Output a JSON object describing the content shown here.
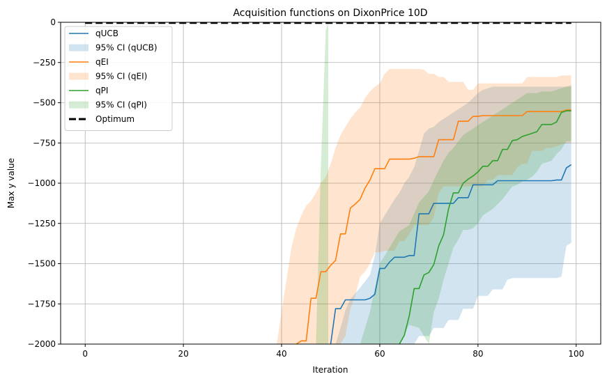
{
  "chart_data": {
    "type": "line",
    "title": "Acquisition functions on DixonPrice 10D",
    "xlabel": "Iteration",
    "ylabel": "Max y value",
    "xlim": [
      -5,
      105
    ],
    "ylim": [
      -2000,
      0
    ],
    "xticks": [
      0,
      20,
      40,
      60,
      80,
      100
    ],
    "yticks": [
      -2000,
      -1750,
      -1500,
      -1250,
      -1000,
      -750,
      -500,
      -250,
      0
    ],
    "xtick_labels": [
      "0",
      "20",
      "40",
      "60",
      "80",
      "100"
    ],
    "ytick_labels": [
      "−2000",
      "−1750",
      "−1500",
      "−1250",
      "−1000",
      "−750",
      "−500",
      "−250",
      "0"
    ],
    "grid": true,
    "legend_position": "upper-left",
    "legend": [
      {
        "label": "qUCB",
        "kind": "line",
        "color": "#1f77b4"
      },
      {
        "label": "95% CI (qUCB)",
        "kind": "band",
        "color": "#1f77b4"
      },
      {
        "label": "qEI",
        "kind": "line",
        "color": "#ff7f0e"
      },
      {
        "label": "95% CI (qEI)",
        "kind": "band",
        "color": "#ff7f0e"
      },
      {
        "label": "qPI",
        "kind": "line",
        "color": "#2ca02c"
      },
      {
        "label": "95% CI (qPI)",
        "kind": "band",
        "color": "#2ca02c"
      },
      {
        "label": "Optimum",
        "kind": "dashed",
        "color": "#000000"
      }
    ],
    "optimum": 0,
    "series": [
      {
        "name": "qUCB",
        "color": "#1f77b4",
        "x": [
          50,
          51,
          52,
          53,
          57,
          58,
          59,
          60,
          61,
          62,
          63,
          64,
          65,
          66,
          67,
          68,
          69,
          70,
          71,
          72,
          73,
          74,
          75,
          76,
          77,
          78,
          79,
          80,
          81,
          82,
          83,
          84,
          85,
          86,
          87,
          88,
          89,
          90,
          91,
          92,
          93,
          94,
          95,
          96,
          97,
          98,
          99
        ],
        "y": [
          -2000,
          -1780,
          -1780,
          -1725,
          -1725,
          -1715,
          -1690,
          -1530,
          -1530,
          -1490,
          -1460,
          -1460,
          -1460,
          -1450,
          -1450,
          -1190,
          -1190,
          -1190,
          -1125,
          -1125,
          -1125,
          -1125,
          -1125,
          -1090,
          -1090,
          -1090,
          -1010,
          -1010,
          -1010,
          -1010,
          -1010,
          -985,
          -985,
          -985,
          -985,
          -985,
          -985,
          -985,
          -985,
          -985,
          -985,
          -985,
          -985,
          -980,
          -980,
          -905,
          -885
        ],
        "ci_x": [
          51,
          52,
          53,
          54,
          56,
          58,
          59,
          60,
          61,
          62,
          63,
          64,
          65,
          66,
          67,
          68,
          69,
          70,
          71,
          72,
          73,
          74,
          75,
          76,
          77,
          78,
          79,
          80,
          81,
          82,
          83,
          84,
          85,
          86,
          87,
          88,
          89,
          90,
          91,
          92,
          93,
          94,
          95,
          96,
          97,
          98,
          99
        ],
        "ci_upper": [
          -2000,
          -1900,
          -1790,
          -1720,
          -1650,
          -1570,
          -1450,
          -1250,
          -1200,
          -1150,
          -1100,
          -1060,
          -1000,
          -960,
          -900,
          -800,
          -690,
          -660,
          -650,
          -620,
          -600,
          -580,
          -560,
          -540,
          -520,
          -500,
          -470,
          -440,
          -420,
          -410,
          -400,
          -400,
          -400,
          -400,
          -400,
          -400,
          -400,
          -400,
          -400,
          -400,
          -400,
          -400,
          -400,
          -400,
          -400,
          -400,
          -390
        ],
        "ci_lower": [
          -2000,
          -2000,
          -2000,
          -2000,
          -2000,
          -2000,
          -2000,
          -2000,
          -2000,
          -2000,
          -2000,
          -2000,
          -2000,
          -2000,
          -2000,
          -1950,
          -1950,
          -1950,
          -1900,
          -1900,
          -1900,
          -1850,
          -1850,
          -1850,
          -1780,
          -1780,
          -1780,
          -1700,
          -1700,
          -1700,
          -1660,
          -1660,
          -1660,
          -1600,
          -1590,
          -1590,
          -1590,
          -1590,
          -1590,
          -1590,
          -1590,
          -1590,
          -1590,
          -1590,
          -1580,
          -1390,
          -1370
        ]
      },
      {
        "name": "qEI",
        "color": "#ff7f0e",
        "x": [
          43,
          44,
          45,
          46,
          47,
          48,
          49,
          50,
          51,
          52,
          53,
          54,
          55,
          56,
          57,
          58,
          59,
          60,
          61,
          62,
          63,
          64,
          65,
          66,
          67,
          68,
          69,
          70,
          71,
          72,
          73,
          74,
          75,
          76,
          77,
          78,
          79,
          80,
          81,
          82,
          83,
          84,
          85,
          86,
          87,
          88,
          89,
          90,
          91,
          92,
          93,
          94,
          95,
          96,
          97,
          98,
          99
        ],
        "y": [
          -2000,
          -1980,
          -1980,
          -1715,
          -1715,
          -1550,
          -1550,
          -1510,
          -1480,
          -1315,
          -1315,
          -1155,
          -1130,
          -1100,
          -1030,
          -980,
          -910,
          -910,
          -910,
          -850,
          -850,
          -850,
          -850,
          -850,
          -845,
          -835,
          -835,
          -835,
          -835,
          -730,
          -730,
          -730,
          -730,
          -615,
          -615,
          -615,
          -585,
          -585,
          -580,
          -580,
          -580,
          -580,
          -580,
          -580,
          -580,
          -580,
          -580,
          -555,
          -555,
          -555,
          -555,
          -555,
          -555,
          -555,
          -555,
          -545,
          -545
        ],
        "ci_x": [
          39,
          40,
          41,
          42,
          43,
          44,
          45,
          46,
          47,
          48,
          49,
          50,
          51,
          52,
          53,
          54,
          55,
          56,
          57,
          58,
          59,
          60,
          61,
          62,
          63,
          64,
          65,
          66,
          67,
          68,
          69,
          70,
          71,
          72,
          73,
          74,
          75,
          76,
          77,
          78,
          79,
          80,
          81,
          82,
          83,
          84,
          85,
          86,
          87,
          88,
          89,
          90,
          91,
          92,
          93,
          94,
          95,
          96,
          97,
          98,
          99
        ],
        "ci_upper": [
          -2000,
          -1800,
          -1600,
          -1400,
          -1280,
          -1200,
          -1140,
          -1110,
          -1060,
          -1000,
          -960,
          -880,
          -780,
          -700,
          -650,
          -600,
          -560,
          -530,
          -470,
          -430,
          -400,
          -380,
          -320,
          -290,
          -290,
          -290,
          -290,
          -290,
          -290,
          -290,
          -295,
          -320,
          -320,
          -340,
          -340,
          -370,
          -370,
          -370,
          -370,
          -420,
          -420,
          -380,
          -380,
          -380,
          -380,
          -380,
          -380,
          -380,
          -380,
          -380,
          -380,
          -340,
          -340,
          -340,
          -340,
          -340,
          -340,
          -340,
          -330,
          -330,
          -330
        ],
        "ci_lower": [
          -2000,
          -2000,
          -2000,
          -2000,
          -2000,
          -2000,
          -2000,
          -2000,
          -2000,
          -2000,
          -2000,
          -2000,
          -2000,
          -2000,
          -1950,
          -1780,
          -1700,
          -1580,
          -1550,
          -1500,
          -1430,
          -1430,
          -1420,
          -1420,
          -1420,
          -1360,
          -1360,
          -1320,
          -1260,
          -1260,
          -1260,
          -1260,
          -1210,
          -1060,
          -1020,
          -1020,
          -1020,
          -1020,
          -1020,
          -1020,
          -1020,
          -1020,
          -1020,
          -980,
          -980,
          -950,
          -950,
          -950,
          -950,
          -900,
          -880,
          -880,
          -800,
          -800,
          -800,
          -780,
          -780,
          -770,
          -760,
          -750,
          -750
        ]
      },
      {
        "name": "qPI",
        "color": "#2ca02c",
        "x": [
          64,
          65,
          66,
          67,
          68,
          69,
          70,
          71,
          72,
          73,
          74,
          75,
          76,
          77,
          78,
          79,
          80,
          81,
          82,
          83,
          84,
          85,
          86,
          87,
          88,
          89,
          90,
          91,
          92,
          93,
          94,
          95,
          96,
          97,
          98,
          99
        ],
        "y": [
          -2000,
          -1945,
          -1825,
          -1655,
          -1655,
          -1570,
          -1555,
          -1505,
          -1390,
          -1320,
          -1160,
          -1060,
          -1060,
          -1000,
          -975,
          -955,
          -930,
          -895,
          -895,
          -860,
          -860,
          -790,
          -790,
          -735,
          -730,
          -710,
          -700,
          -690,
          -680,
          -635,
          -635,
          -635,
          -620,
          -560,
          -550,
          -550
        ],
        "spike_x": [
          47,
          48,
          49,
          49.5
        ],
        "spike_lower": [
          -2000,
          -2000,
          -2000,
          -2000
        ],
        "spike_upper": [
          -2000,
          -900,
          -50,
          0
        ],
        "ci_x": [
          54,
          56,
          58,
          60,
          62,
          64,
          66,
          68,
          70,
          71,
          72,
          73,
          74,
          75,
          76,
          77,
          78,
          79,
          80,
          81,
          82,
          83,
          84,
          85,
          86,
          87,
          88,
          89,
          90,
          91,
          92,
          93,
          94,
          95,
          96,
          97,
          98,
          99
        ],
        "ci_upper": [
          -2000,
          -2000,
          -1800,
          -1500,
          -1400,
          -1300,
          -1260,
          -1120,
          -1050,
          -980,
          -920,
          -860,
          -810,
          -780,
          -740,
          -700,
          -680,
          -660,
          -640,
          -620,
          -600,
          -580,
          -560,
          -540,
          -520,
          -500,
          -480,
          -460,
          -440,
          -440,
          -440,
          -430,
          -430,
          -430,
          -420,
          -410,
          -400,
          -400
        ],
        "ci_lower": [
          -2000,
          -2000,
          -2000,
          -2000,
          -2000,
          -2000,
          -1880,
          -1900,
          -2000,
          -1800,
          -1720,
          -1600,
          -1500,
          -1400,
          -1350,
          -1290,
          -1290,
          -1280,
          -1250,
          -1200,
          -1180,
          -1160,
          -1130,
          -1100,
          -1060,
          -1020,
          -1010,
          -990,
          -980,
          -960,
          -930,
          -880,
          -870,
          -860,
          -820,
          -790,
          -740,
          -740
        ]
      }
    ]
  }
}
